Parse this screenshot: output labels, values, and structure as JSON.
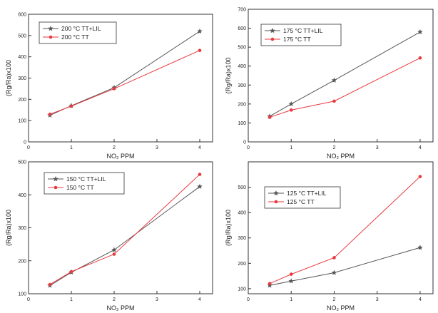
{
  "chart_data": [
    {
      "type": "line",
      "xlabel": "NO₂ PPM",
      "ylabel": "(Rg/Ra)x100",
      "xlim": [
        0,
        4.3
      ],
      "ylim": [
        0,
        600
      ],
      "xticks": [
        0,
        1,
        2,
        3,
        4
      ],
      "yticks": [
        0,
        100,
        200,
        300,
        400,
        500,
        600
      ],
      "legend_position": "top-left",
      "series": [
        {
          "name": "200 °C TT+LIL",
          "color": "#555555",
          "marker": "star",
          "x": [
            0.5,
            1,
            2,
            4
          ],
          "y": [
            125,
            170,
            255,
            520
          ]
        },
        {
          "name": "200 °C TT",
          "color": "#e8393f",
          "marker": "circle",
          "x": [
            0.5,
            1,
            2,
            4
          ],
          "y": [
            130,
            168,
            250,
            430
          ]
        }
      ]
    },
    {
      "type": "line",
      "xlabel": "NO₂ PPM",
      "ylabel": "(Rg/Ra)x100",
      "xlim": [
        0,
        4.3
      ],
      "ylim": [
        0,
        700
      ],
      "xticks": [
        0,
        1,
        2,
        3,
        4
      ],
      "yticks": [
        0,
        100,
        200,
        300,
        400,
        500,
        600,
        700
      ],
      "legend_position": "top-left",
      "series": [
        {
          "name": "175 °C TT+LIL",
          "color": "#555555",
          "marker": "star",
          "x": [
            0.5,
            1,
            2,
            4
          ],
          "y": [
            135,
            200,
            325,
            580
          ]
        },
        {
          "name": "175 °C TT",
          "color": "#e8393f",
          "marker": "circle",
          "x": [
            0.5,
            1,
            2,
            4
          ],
          "y": [
            130,
            168,
            215,
            443
          ]
        }
      ]
    },
    {
      "type": "line",
      "xlabel": "NO₂ PPM",
      "ylabel": "(Rg/Ra)x100",
      "xlim": [
        0,
        4.3
      ],
      "ylim": [
        100,
        500
      ],
      "xticks": [
        0,
        1,
        2,
        3,
        4
      ],
      "yticks": [
        100,
        200,
        300,
        400,
        500
      ],
      "legend_position": "top-left",
      "series": [
        {
          "name": "150 °C TT+LIL",
          "color": "#555555",
          "marker": "star",
          "x": [
            0.5,
            1,
            2,
            4
          ],
          "y": [
            125,
            165,
            233,
            425
          ]
        },
        {
          "name": "150 °C TT",
          "color": "#e8393f",
          "marker": "circle",
          "x": [
            0.5,
            1,
            2,
            4
          ],
          "y": [
            128,
            167,
            220,
            462
          ]
        }
      ]
    },
    {
      "type": "line",
      "xlabel": "NO₂ PPM",
      "ylabel": "(Rg/Ra)x100",
      "xlim": [
        0,
        4.3
      ],
      "ylim": [
        80,
        600
      ],
      "xticks": [
        0,
        1,
        2,
        3,
        4
      ],
      "yticks": [
        100,
        200,
        300,
        400,
        500
      ],
      "legend_position": "top-left",
      "series": [
        {
          "name": "125 °C TT+LIL",
          "color": "#555555",
          "marker": "star",
          "x": [
            0.5,
            1,
            2,
            4
          ],
          "y": [
            113,
            130,
            163,
            262
          ]
        },
        {
          "name": "125 °C TT",
          "color": "#e8393f",
          "marker": "circle",
          "x": [
            0.5,
            1,
            2,
            4
          ],
          "y": [
            120,
            157,
            222,
            542
          ]
        }
      ]
    }
  ]
}
